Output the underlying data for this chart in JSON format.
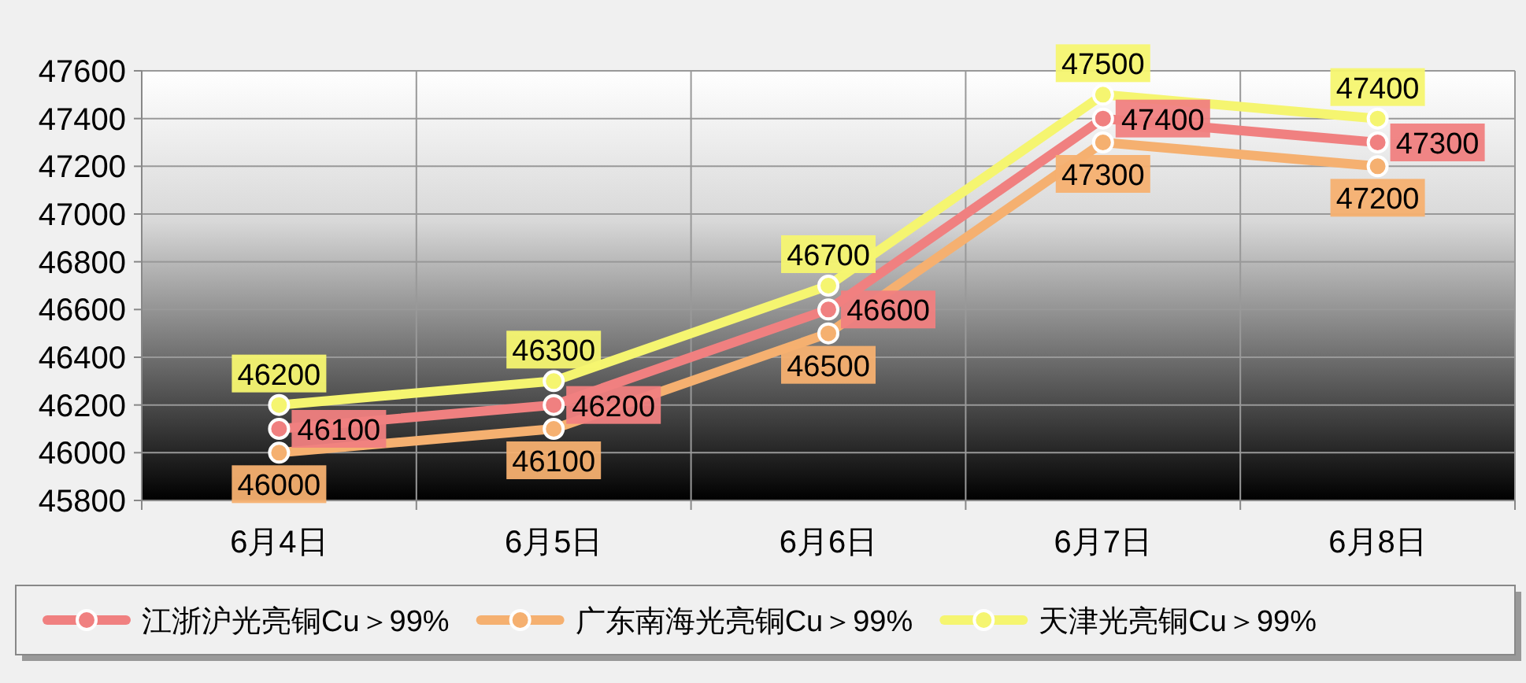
{
  "chart_data": {
    "type": "line",
    "categories": [
      "6月4日",
      "6月5日",
      "6月6日",
      "6月7日",
      "6月8日"
    ],
    "series": [
      {
        "name": "江浙沪光亮铜Cu＞99%",
        "color": "#f08080",
        "values": [
          46100,
          46200,
          46600,
          47400,
          47300
        ]
      },
      {
        "name": "广东南海光亮铜Cu＞99%",
        "color": "#f5b070",
        "values": [
          46000,
          46100,
          46500,
          47300,
          47200
        ]
      },
      {
        "name": "天津光亮铜Cu＞99%",
        "color": "#f5f570",
        "values": [
          46200,
          46300,
          46700,
          47500,
          47400
        ]
      }
    ],
    "ylim": [
      45800,
      47600
    ],
    "yticks": [
      45800,
      46000,
      46200,
      46400,
      46600,
      46800,
      47000,
      47200,
      47400,
      47600
    ],
    "grid": true,
    "legend": "bottom",
    "marker": "circle",
    "line_style": "solid",
    "data_labels": true
  }
}
